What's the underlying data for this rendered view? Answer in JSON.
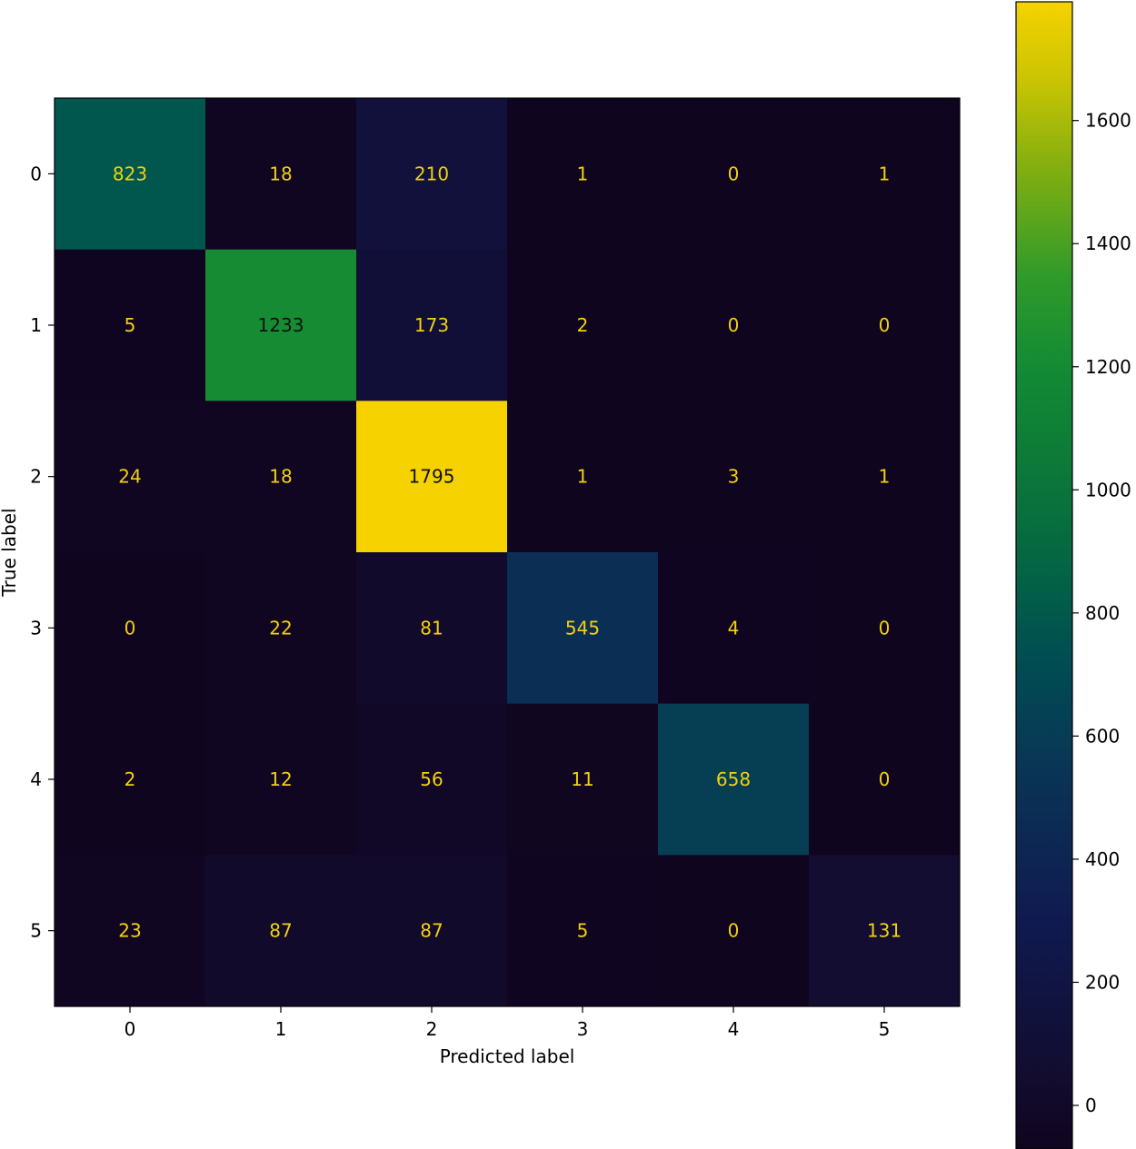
{
  "chart_data": {
    "type": "heatmap",
    "title": "",
    "xlabel": "Predicted label",
    "ylabel": "True label",
    "x_categories": [
      "0",
      "1",
      "2",
      "3",
      "4",
      "5"
    ],
    "y_categories": [
      "0",
      "1",
      "2",
      "3",
      "4",
      "5"
    ],
    "values": [
      [
        823,
        18,
        210,
        1,
        0,
        1
      ],
      [
        5,
        1233,
        173,
        2,
        0,
        0
      ],
      [
        24,
        18,
        1795,
        1,
        3,
        1
      ],
      [
        0,
        22,
        81,
        545,
        4,
        0
      ],
      [
        2,
        12,
        56,
        11,
        658,
        0
      ],
      [
        23,
        87,
        87,
        5,
        0,
        131
      ]
    ],
    "colormap": "dark-to-yellow",
    "color_min": 0,
    "color_max": 1795,
    "colorbar": {
      "ticks": [
        0,
        200,
        400,
        600,
        800,
        1000,
        1200,
        1400,
        1600
      ],
      "placement": "right"
    },
    "colors": {
      "low": "#10051f",
      "high": "#f6d200",
      "text_on_dark": "#f2d10e",
      "text_on_light": "#111111"
    }
  }
}
